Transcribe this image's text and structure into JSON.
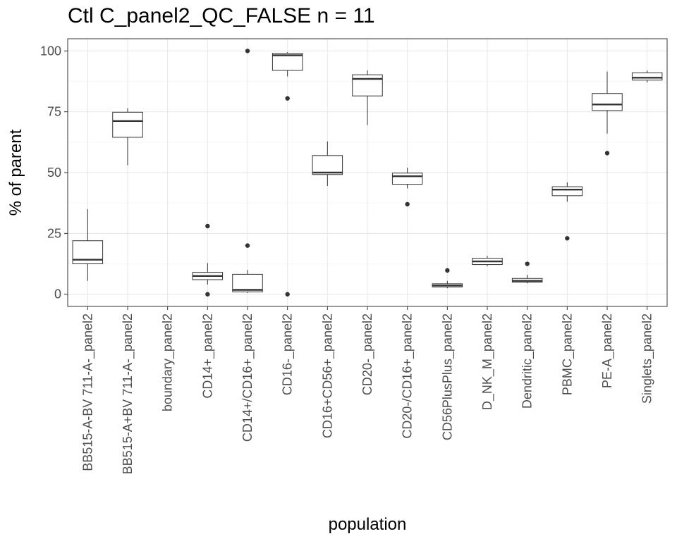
{
  "chart_data": {
    "type": "box",
    "title": "Ctl C_panel2_QC_FALSE n = 11",
    "xlabel": "population",
    "ylabel": "% of parent",
    "ylim": [
      -5,
      105
    ],
    "yticks": [
      0,
      25,
      50,
      75,
      100
    ],
    "grid": true,
    "categories": [
      "BB515-A-BV 711-A-_panel2",
      "BB515-A+BV 711-A-_panel2",
      "boundary_panel2",
      "CD14+_panel2",
      "CD14+/CD16+_panel2",
      "CD16-_panel2",
      "CD16+CD56+_panel2",
      "CD20-_panel2",
      "CD20-/CD16+_panel2",
      "CD56PlusPlus_panel2",
      "D_NK_M_panel2",
      "Dendritic_panel2",
      "PBMC_panel2",
      "PE-A_panel2",
      "Singlets_panel2"
    ],
    "boxes": [
      {
        "lower_whisker": 5.5,
        "q1": 12.5,
        "median": 14.2,
        "q3": 22.0,
        "upper_whisker": 35.0,
        "outliers": []
      },
      {
        "lower_whisker": 53.0,
        "q1": 64.5,
        "median": 71.2,
        "q3": 74.8,
        "upper_whisker": 76.5,
        "outliers": []
      },
      null,
      {
        "lower_whisker": 4.0,
        "q1": 6.0,
        "median": 7.5,
        "q3": 9.0,
        "upper_whisker": 12.8,
        "outliers": [
          0.0,
          28.0
        ]
      },
      {
        "lower_whisker": 0.5,
        "q1": 1.0,
        "median": 1.8,
        "q3": 8.2,
        "upper_whisker": 10.0,
        "outliers": [
          20.0,
          100.0
        ]
      },
      {
        "lower_whisker": 89.5,
        "q1": 92.0,
        "median": 98.2,
        "q3": 99.0,
        "upper_whisker": 99.5,
        "outliers": [
          0.0,
          80.5
        ]
      },
      {
        "lower_whisker": 44.5,
        "q1": 49.2,
        "median": 50.0,
        "q3": 57.0,
        "upper_whisker": 62.8,
        "outliers": []
      },
      {
        "lower_whisker": 69.5,
        "q1": 81.5,
        "median": 88.5,
        "q3": 90.2,
        "upper_whisker": 92.0,
        "outliers": []
      },
      {
        "lower_whisker": 43.5,
        "q1": 45.2,
        "median": 48.5,
        "q3": 49.8,
        "upper_whisker": 52.0,
        "outliers": [
          37.0
        ]
      },
      {
        "lower_whisker": 2.5,
        "q1": 3.0,
        "median": 3.6,
        "q3": 4.3,
        "upper_whisker": 5.5,
        "outliers": [
          9.8
        ]
      },
      {
        "lower_whisker": 11.5,
        "q1": 12.2,
        "median": 13.5,
        "q3": 14.8,
        "upper_whisker": 15.8,
        "outliers": []
      },
      {
        "lower_whisker": 4.5,
        "q1": 5.0,
        "median": 5.5,
        "q3": 6.5,
        "upper_whisker": 8.0,
        "outliers": [
          12.5
        ]
      },
      {
        "lower_whisker": 38.0,
        "q1": 40.5,
        "median": 43.0,
        "q3": 44.2,
        "upper_whisker": 46.0,
        "outliers": [
          23.0
        ]
      },
      {
        "lower_whisker": 66.0,
        "q1": 75.5,
        "median": 78.0,
        "q3": 82.5,
        "upper_whisker": 91.5,
        "outliers": [
          58.0
        ]
      },
      {
        "lower_whisker": 87.0,
        "q1": 88.0,
        "median": 89.0,
        "q3": 91.0,
        "upper_whisker": 92.0,
        "outliers": []
      }
    ]
  }
}
